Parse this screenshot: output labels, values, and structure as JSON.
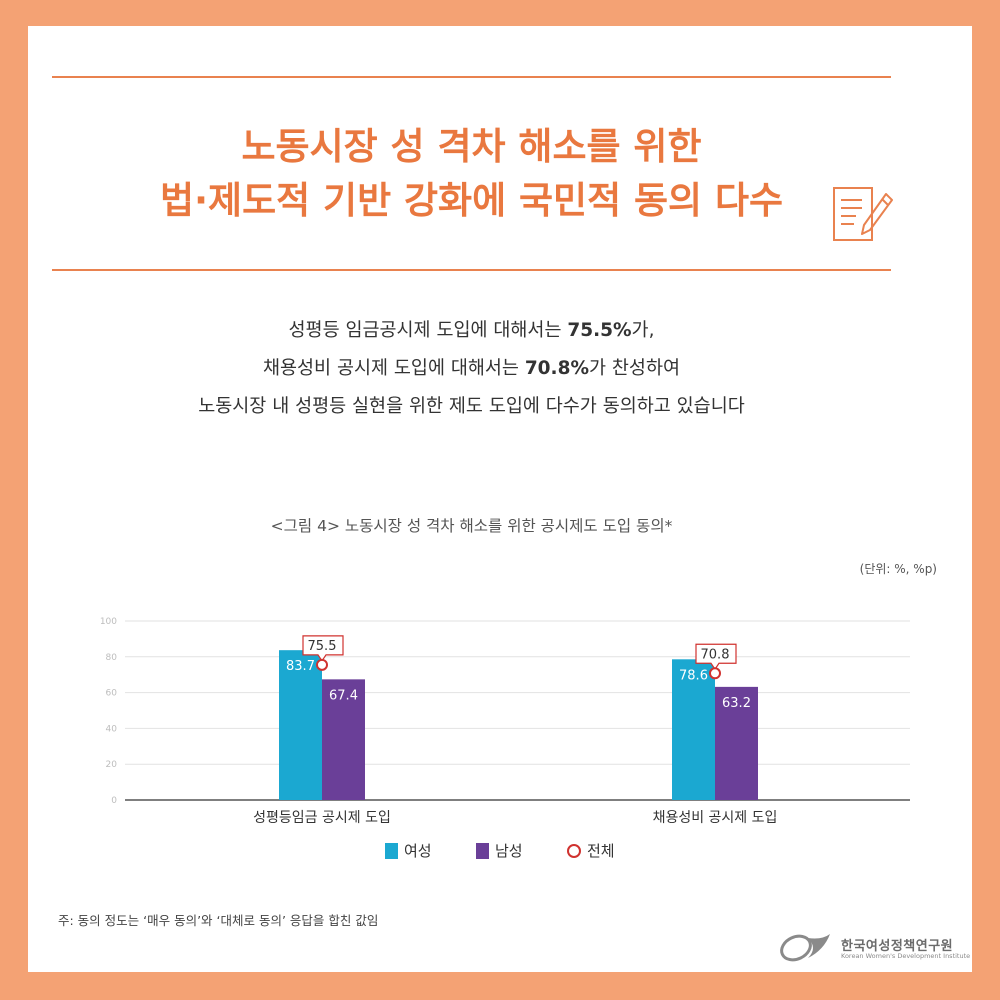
{
  "headline": {
    "line1": "노동시장 성 격차 해소를 위한",
    "line2": "법·제도적 기반 강화에 국민적 동의 다수"
  },
  "summary": {
    "l1_a": "성평등 임금공시제 도입에 대해서는 ",
    "l1_b": "75.5%",
    "l1_c": "가,",
    "l2_a": "채용성비 공시제 도입에 대해서는 ",
    "l2_b": "70.8%",
    "l2_c": "가 찬성하여",
    "l3": "노동시장 내 성평등 실현을 위한 제도 도입에 다수가 동의하고 있습니다"
  },
  "icons": {
    "memo": "memo-pencil-icon",
    "logo": "kwdi-logo-icon"
  },
  "colors": {
    "background": "#F4A274",
    "accent": "#E9783F",
    "female": "#1BA8D1",
    "male": "#6A3F98",
    "total": "#D0322F"
  },
  "chart_data": {
    "type": "bar",
    "title": "<그림 4> 노동시장 성 격차 해소를 위한 공시제도 도입 동의*",
    "unit_label": "(단위: %, %p)",
    "categories": [
      "성평등임금 공시제 도입",
      "채용성비 공시제 도입"
    ],
    "series": [
      {
        "name": "여성",
        "values": [
          83.7,
          78.6
        ]
      },
      {
        "name": "남성",
        "values": [
          67.4,
          63.2
        ]
      },
      {
        "name": "전체",
        "values": [
          75.5,
          70.8
        ]
      }
    ],
    "ylim": [
      0,
      100
    ],
    "yticks": [
      0,
      20,
      40,
      60,
      80,
      100
    ],
    "grid": true,
    "legend": "bottom-center"
  },
  "footer": {
    "note": "주: 동의 정도는 ‘매우 동의’와 ‘대체로 동의’ 응답을 합친 값임",
    "org_ko": "한국여성정책연구원",
    "org_en": "Korean Women's Development Institute"
  }
}
